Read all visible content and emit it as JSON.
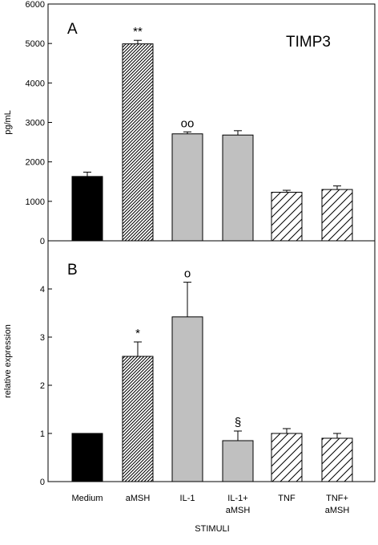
{
  "chart_data": [
    {
      "type": "bar",
      "panel": "A",
      "title": "TIMP3",
      "ylabel": "pg/mL",
      "xlabel": "",
      "ylim": [
        0,
        6000
      ],
      "yticks": [
        0,
        1000,
        2000,
        3000,
        4000,
        5000,
        6000
      ],
      "categories": [
        "Medium",
        "aMSH",
        "IL-1",
        "IL-1+ aMSH",
        "TNF",
        "TNF+ aMSH"
      ],
      "values": [
        1630,
        4990,
        2710,
        2680,
        1230,
        1300
      ],
      "errors": [
        110,
        90,
        50,
        110,
        50,
        90
      ],
      "annotations": [
        "",
        "**",
        "oo",
        "",
        "",
        ""
      ],
      "fills": [
        "solid-black",
        "dense-diagonal-hatch",
        "solid-gray",
        "solid-gray",
        "sparse-diagonal-hatch",
        "sparse-diagonal-hatch"
      ],
      "colors": {
        "black": "#000000",
        "gray": "#c0c0c0"
      }
    },
    {
      "type": "bar",
      "panel": "B",
      "title": "",
      "ylabel": "relative expression",
      "xlabel": "STIMULI",
      "ylim": [
        0,
        5
      ],
      "yticks": [
        0,
        1,
        2,
        3,
        4
      ],
      "categories": [
        "Medium",
        "aMSH",
        "IL-1",
        "IL-1+ aMSH",
        "TNF",
        "TNF+ aMSH"
      ],
      "values": [
        1.0,
        2.6,
        3.42,
        0.85,
        1.0,
        0.9
      ],
      "errors": [
        0,
        0.3,
        0.72,
        0.2,
        0.1,
        0.1
      ],
      "annotations": [
        "",
        "*",
        "o",
        "§",
        "",
        ""
      ],
      "fills": [
        "solid-black",
        "dense-diagonal-hatch",
        "solid-gray",
        "solid-gray",
        "sparse-diagonal-hatch",
        "sparse-diagonal-hatch"
      ],
      "colors": {
        "black": "#000000",
        "gray": "#c0c0c0"
      }
    }
  ],
  "category_labels": [
    [
      "Medium"
    ],
    [
      "aMSH"
    ],
    [
      "IL-1"
    ],
    [
      "IL-1+",
      "aMSH"
    ],
    [
      "TNF"
    ],
    [
      "TNF+",
      "aMSH"
    ]
  ]
}
